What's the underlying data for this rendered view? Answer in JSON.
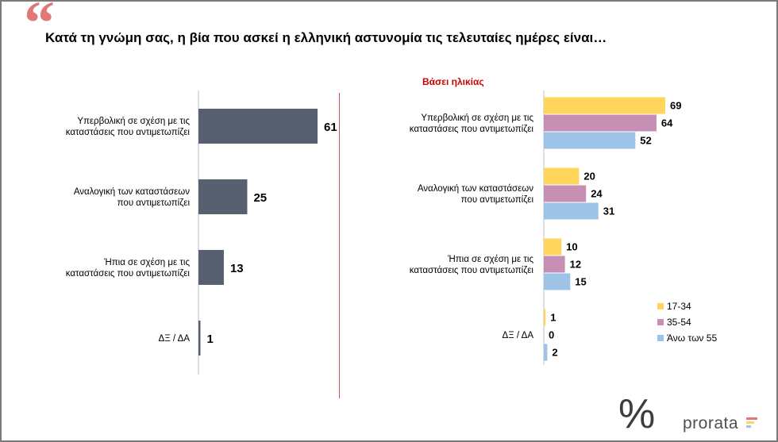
{
  "header": {
    "question": "Κατά τη γνώμη σας, η βία που ασκεί η ελληνική αστυνομία τις τελευταίες ημέρες είναι…",
    "subtitle": "Βάσει ηλικίας",
    "quote_icon": "quote-icon"
  },
  "logo": {
    "symbol": "%",
    "text": "prorata"
  },
  "colors": {
    "total_bar": "#56606f",
    "age_17_34": "#ffd65b",
    "age_35_54": "#c690b5",
    "age_55_plus": "#9dc3e6",
    "quote": "#e0787a",
    "subtitle": "#cc0000",
    "logo_bar_1": "#e0787a",
    "logo_bar_2": "#ffd65b",
    "logo_bar_3": "#9dc3e6"
  },
  "chart_data": [
    {
      "type": "bar",
      "orientation": "horizontal",
      "categories": [
        "Υπερβολική σε σχέση με τις καταστάσεις που αντιμετωπίζει",
        "Αναλογική των καταστάσεων που αντιμετωπίζει",
        "Ήπια σε σχέση με τις καταστάσεις που αντιμετωπίζει",
        "ΔΞ / ΔΑ"
      ],
      "values": [
        61,
        25,
        13,
        1
      ],
      "xlim": [
        0,
        100
      ],
      "grid": false,
      "legend": "none"
    },
    {
      "type": "bar",
      "orientation": "horizontal",
      "title": "Βάσει ηλικίας",
      "categories": [
        "Υπερβολική σε σχέση με τις καταστάσεις που αντιμετωπίζει",
        "Αναλογική των καταστάσεων που αντιμετωπίζει",
        "Ήπια σε σχέση με τις καταστάσεις που αντιμετωπίζει",
        "ΔΞ / ΔΑ"
      ],
      "series": [
        {
          "name": "17-34",
          "values": [
            69,
            20,
            10,
            1
          ]
        },
        {
          "name": "35-54",
          "values": [
            64,
            24,
            12,
            0
          ]
        },
        {
          "name": "Άνω των 55",
          "values": [
            52,
            31,
            15,
            2
          ]
        }
      ],
      "xlim": [
        0,
        100
      ],
      "grid": false,
      "legend": "bottom-right"
    }
  ]
}
